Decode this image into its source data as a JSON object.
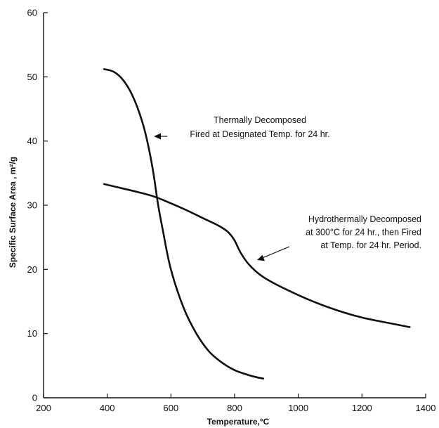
{
  "chart_data": {
    "type": "line",
    "title": "",
    "xlabel": "Temperature,°C",
    "ylabel": "Specific Surface Area , m²/g",
    "xlim": [
      200,
      1400
    ],
    "ylim": [
      0,
      60
    ],
    "x_ticks": [
      200,
      400,
      600,
      800,
      1000,
      1200,
      1400
    ],
    "y_ticks": [
      0,
      10,
      20,
      30,
      40,
      50,
      60
    ],
    "grid": false,
    "series": [
      {
        "x": [
          390,
          420,
          450,
          480,
          510,
          530,
          545,
          560,
          575,
          600,
          640,
          680,
          720,
          760,
          800,
          840,
          870,
          890
        ],
        "y": [
          51.2,
          50.8,
          49.5,
          47,
          43,
          39,
          35,
          30,
          26,
          20,
          14,
          10,
          7.2,
          5.5,
          4.3,
          3.6,
          3.2,
          3.0
        ]
      },
      {
        "x": [
          390,
          450,
          500,
          550,
          600,
          650,
          700,
          750,
          780,
          800,
          820,
          850,
          900,
          1000,
          1100,
          1200,
          1300,
          1350
        ],
        "y": [
          33.3,
          32.6,
          32.0,
          31.3,
          30.3,
          29.2,
          28.0,
          26.8,
          25.8,
          24.5,
          22.5,
          20.5,
          18.5,
          16.0,
          14.0,
          12.5,
          11.5,
          11.0
        ]
      }
    ],
    "annotations": [
      {
        "lines": [
          "Thermally Decomposed",
          "Fired at Designated Temp. for 24 hr."
        ]
      },
      {
        "lines": [
          "Hydrothermally Decomposed",
          "at 300°C for 24 hr., then Fired",
          "at Temp. for 24 hr. Period."
        ]
      }
    ]
  }
}
